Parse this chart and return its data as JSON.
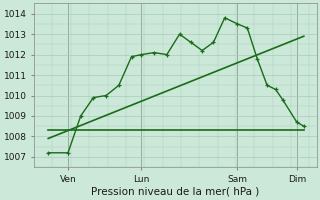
{
  "title": "",
  "xlabel": "Pression niveau de la mer( hPa )",
  "ylabel": "",
  "bg_color": "#cce8d8",
  "grid_color": "#aaccbb",
  "line_color": "#1a6b1a",
  "ylim": [
    1006.5,
    1014.5
  ],
  "yticks": [
    1007,
    1008,
    1009,
    1010,
    1011,
    1012,
    1013,
    1014
  ],
  "xtick_labels": [
    "Ven",
    "Lun",
    "Sam",
    "Dim"
  ],
  "xtick_positions": [
    0.12,
    0.38,
    0.72,
    0.93
  ],
  "vline_positions": [
    0.12,
    0.38,
    0.72,
    0.93
  ],
  "series1_x": [
    0.05,
    0.12,
    0.165,
    0.21,
    0.255,
    0.3,
    0.345,
    0.38,
    0.425,
    0.47,
    0.515,
    0.555,
    0.595,
    0.635,
    0.675,
    0.72,
    0.755,
    0.79,
    0.825,
    0.855,
    0.88,
    0.93,
    0.955
  ],
  "series1_y": [
    1007.2,
    1007.2,
    1009.0,
    1009.9,
    1010.0,
    1010.5,
    1011.9,
    1012.0,
    1012.1,
    1012.0,
    1013.0,
    1012.6,
    1012.2,
    1012.6,
    1013.8,
    1013.5,
    1013.3,
    1011.8,
    1010.5,
    1010.3,
    1009.8,
    1008.7,
    1008.5
  ],
  "series2_x": [
    0.05,
    0.955
  ],
  "series2_y": [
    1007.9,
    1012.9
  ],
  "series3_x": [
    0.05,
    0.955
  ],
  "series3_y": [
    1008.3,
    1008.3
  ],
  "xlim": [
    0.0,
    1.0
  ]
}
